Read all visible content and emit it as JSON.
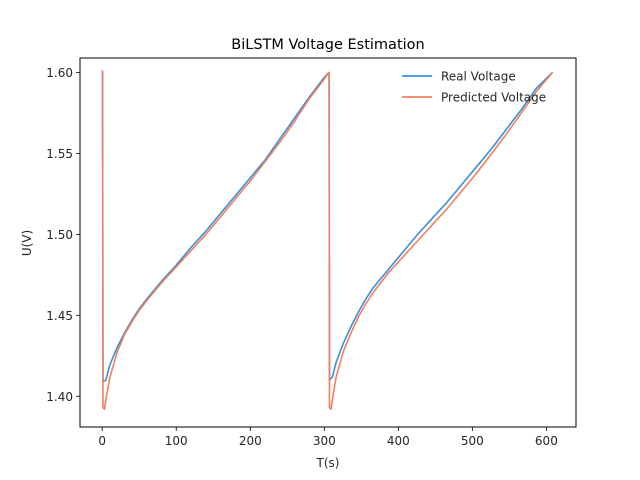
{
  "chart_data": {
    "type": "line",
    "title": "BiLSTM Voltage Estimation",
    "xlabel": "T(s)",
    "ylabel": "U(V)",
    "xlim": [
      -30,
      640
    ],
    "ylim": [
      1.381,
      1.609
    ],
    "xticks": [
      0,
      100,
      200,
      300,
      400,
      500,
      600
    ],
    "yticks": [
      1.4,
      1.45,
      1.5,
      1.55,
      1.6
    ],
    "ytick_labels": [
      "1.40",
      "1.45",
      "1.50",
      "1.55",
      "1.60"
    ],
    "legend_position": "top-right",
    "grid": false,
    "series": [
      {
        "name": "Real Voltage",
        "color": "#3b8fd9",
        "x": [
          0,
          0.5,
          1,
          5,
          10,
          20,
          30,
          40,
          50,
          60,
          80,
          100,
          120,
          140,
          160,
          180,
          200,
          220,
          240,
          260,
          280,
          300,
          306,
          306.5,
          307,
          311,
          316,
          326,
          336,
          346,
          356,
          366,
          386,
          406,
          426,
          446,
          466,
          486,
          506,
          526,
          546,
          566,
          586,
          608
        ],
        "y": [
          1.6,
          1.6,
          1.409,
          1.41,
          1.419,
          1.43,
          1.439,
          1.447,
          1.454,
          1.46,
          1.471,
          1.481,
          1.492,
          1.502,
          1.513,
          1.524,
          1.535,
          1.546,
          1.559,
          1.572,
          1.585,
          1.597,
          1.6,
          1.6,
          1.41,
          1.412,
          1.421,
          1.433,
          1.443,
          1.452,
          1.46,
          1.467,
          1.478,
          1.489,
          1.5,
          1.51,
          1.52,
          1.531,
          1.542,
          1.553,
          1.565,
          1.577,
          1.59,
          1.6
        ]
      },
      {
        "name": "Predicted Voltage",
        "color": "#f07f5f",
        "x": [
          0,
          0.5,
          1,
          3,
          5,
          10,
          20,
          30,
          40,
          50,
          60,
          80,
          100,
          120,
          140,
          160,
          180,
          200,
          220,
          240,
          260,
          280,
          300,
          306,
          306.5,
          307,
          309,
          311,
          316,
          326,
          336,
          346,
          356,
          366,
          386,
          406,
          426,
          446,
          466,
          486,
          506,
          526,
          546,
          566,
          586,
          608
        ],
        "y": [
          1.601,
          1.601,
          1.393,
          1.392,
          1.398,
          1.411,
          1.427,
          1.438,
          1.446,
          1.453,
          1.459,
          1.47,
          1.48,
          1.49,
          1.5,
          1.511,
          1.522,
          1.533,
          1.545,
          1.557,
          1.57,
          1.584,
          1.596,
          1.6,
          1.6,
          1.393,
          1.392,
          1.398,
          1.412,
          1.428,
          1.439,
          1.449,
          1.457,
          1.464,
          1.476,
          1.486,
          1.496,
          1.506,
          1.516,
          1.527,
          1.538,
          1.55,
          1.562,
          1.575,
          1.588,
          1.6
        ]
      }
    ]
  }
}
